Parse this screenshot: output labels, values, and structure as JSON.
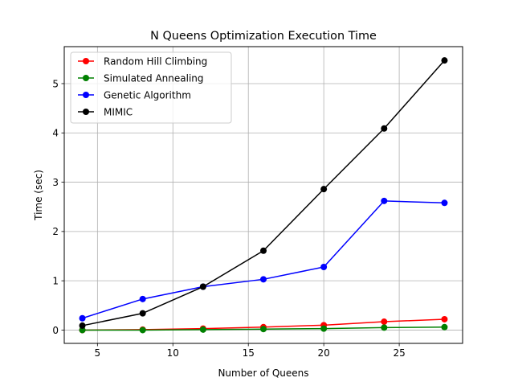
{
  "chart_data": {
    "type": "line",
    "title": "N Queens Optimization Execution Time",
    "xlabel": "Number of Queens",
    "ylabel": "Time (sec)",
    "x": [
      4,
      8,
      12,
      16,
      20,
      24,
      28
    ],
    "xlim": [
      2.8,
      29.2
    ],
    "ylim": [
      -0.27,
      5.75
    ],
    "xticks": [
      5,
      10,
      15,
      20,
      25
    ],
    "yticks": [
      0,
      1,
      2,
      3,
      4,
      5
    ],
    "grid": true,
    "legend_position": "upper left",
    "series": [
      {
        "name": "Random Hill Climbing",
        "color": "#ff0000",
        "values": [
          0.0,
          0.01,
          0.03,
          0.06,
          0.1,
          0.17,
          0.22
        ]
      },
      {
        "name": "Simulated Annealing",
        "color": "#008000",
        "values": [
          0.0,
          0.0,
          0.01,
          0.02,
          0.03,
          0.05,
          0.06
        ]
      },
      {
        "name": "Genetic Algorithm",
        "color": "#0000ff",
        "values": [
          0.24,
          0.63,
          0.88,
          1.03,
          1.28,
          2.62,
          2.58
        ]
      },
      {
        "name": "MIMIC",
        "color": "#000000",
        "values": [
          0.09,
          0.34,
          0.88,
          1.61,
          2.86,
          4.09,
          5.47
        ]
      }
    ]
  }
}
